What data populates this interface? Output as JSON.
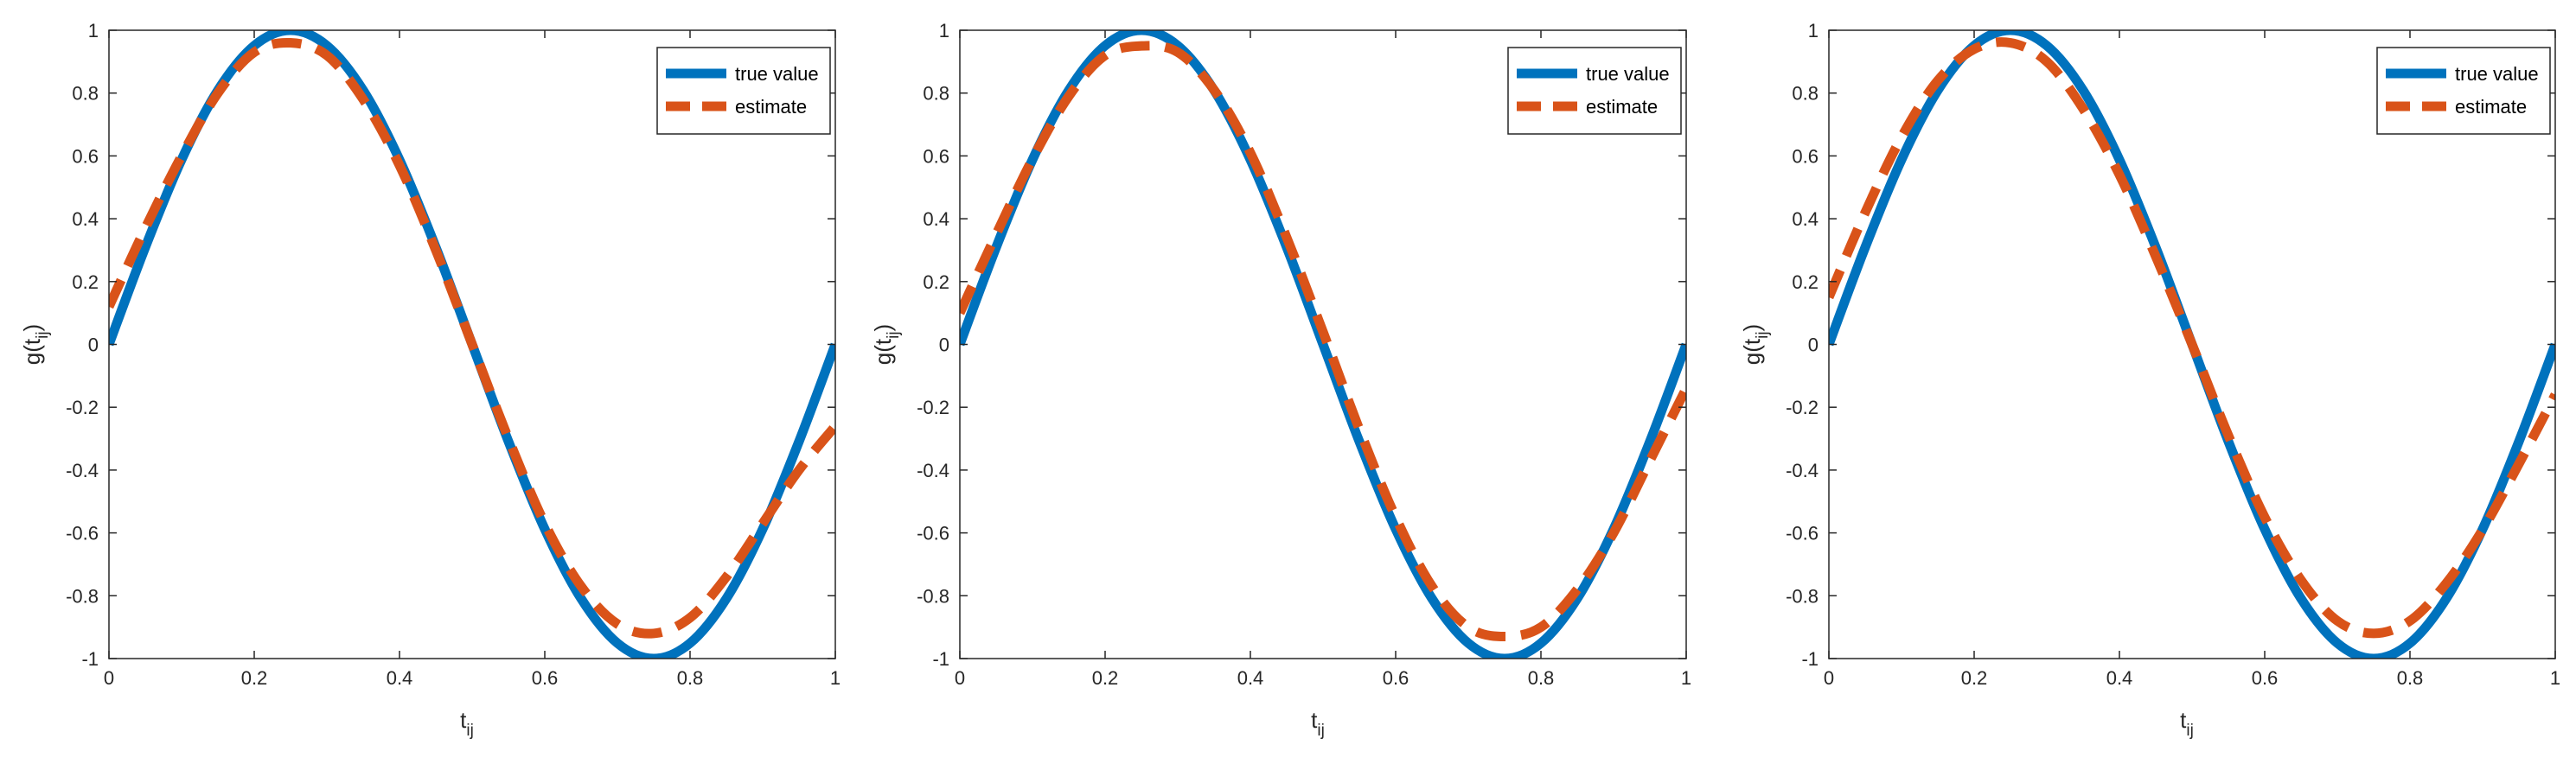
{
  "colors": {
    "true_value": "#0072BD",
    "estimate": "#D95319",
    "axis": "#262626"
  },
  "chart_data": [
    {
      "type": "line",
      "xlabel": {
        "main": "t",
        "sub": "ij"
      },
      "ylabel": {
        "main": "g(t",
        "sub": "ij",
        "close": ")"
      },
      "xlim": [
        0,
        1
      ],
      "ylim": [
        -1,
        1
      ],
      "xticks": [
        "0",
        "0.2",
        "0.4",
        "0.6",
        "0.8",
        "1"
      ],
      "yticks": [
        "-1",
        "-0.8",
        "-0.6",
        "-0.4",
        "-0.2",
        "0",
        "0.2",
        "0.4",
        "0.6",
        "0.8",
        "1"
      ],
      "grid": false,
      "legend_position": "top-right",
      "series": [
        {
          "name": "true value",
          "style": "solid",
          "x": [
            0,
            0.05,
            0.1,
            0.15,
            0.2,
            0.25,
            0.3,
            0.35,
            0.4,
            0.45,
            0.5,
            0.55,
            0.6,
            0.65,
            0.7,
            0.75,
            0.8,
            0.85,
            0.9,
            0.95,
            1
          ],
          "y": [
            0,
            0.309,
            0.588,
            0.809,
            0.951,
            1,
            0.951,
            0.809,
            0.588,
            0.309,
            0,
            -0.309,
            -0.588,
            -0.809,
            -0.951,
            -1,
            -0.951,
            -0.809,
            -0.588,
            -0.309,
            0
          ]
        },
        {
          "name": "estimate",
          "style": "dashed",
          "x": [
            0,
            0.05,
            0.1,
            0.15,
            0.2,
            0.25,
            0.3,
            0.35,
            0.4,
            0.45,
            0.5,
            0.55,
            0.6,
            0.65,
            0.7,
            0.75,
            0.8,
            0.85,
            0.9,
            0.95,
            1
          ],
          "y": [
            0.12,
            0.37,
            0.6,
            0.8,
            0.93,
            0.96,
            0.92,
            0.78,
            0.57,
            0.3,
            0,
            -0.3,
            -0.57,
            -0.77,
            -0.89,
            -0.92,
            -0.87,
            -0.74,
            -0.57,
            -0.4,
            -0.26
          ]
        }
      ]
    },
    {
      "type": "line",
      "xlabel": {
        "main": "t",
        "sub": "ij"
      },
      "ylabel": {
        "main": "g(t",
        "sub": "ij",
        "close": ")"
      },
      "xlim": [
        0,
        1
      ],
      "ylim": [
        -1,
        1
      ],
      "xticks": [
        "0",
        "0.2",
        "0.4",
        "0.6",
        "0.8",
        "1"
      ],
      "yticks": [
        "-1",
        "-0.8",
        "-0.6",
        "-0.4",
        "-0.2",
        "0",
        "0.2",
        "0.4",
        "0.6",
        "0.8",
        "1"
      ],
      "grid": false,
      "legend_position": "top-right",
      "series": [
        {
          "name": "true value",
          "style": "solid",
          "x": [
            0,
            0.05,
            0.1,
            0.15,
            0.2,
            0.25,
            0.3,
            0.35,
            0.4,
            0.45,
            0.5,
            0.55,
            0.6,
            0.65,
            0.7,
            0.75,
            0.8,
            0.85,
            0.9,
            0.95,
            1
          ],
          "y": [
            0,
            0.309,
            0.588,
            0.809,
            0.951,
            1,
            0.951,
            0.809,
            0.588,
            0.309,
            0,
            -0.309,
            -0.588,
            -0.809,
            -0.951,
            -1,
            -0.951,
            -0.809,
            -0.588,
            -0.309,
            0
          ]
        },
        {
          "name": "estimate",
          "style": "dashed",
          "x": [
            0,
            0.05,
            0.1,
            0.15,
            0.2,
            0.25,
            0.3,
            0.35,
            0.4,
            0.45,
            0.5,
            0.55,
            0.6,
            0.65,
            0.7,
            0.75,
            0.8,
            0.85,
            0.9,
            0.95,
            1
          ],
          "y": [
            0.1,
            0.35,
            0.59,
            0.79,
            0.92,
            0.95,
            0.93,
            0.81,
            0.61,
            0.34,
            0.04,
            -0.27,
            -0.55,
            -0.77,
            -0.9,
            -0.93,
            -0.9,
            -0.78,
            -0.6,
            -0.37,
            -0.14
          ]
        }
      ]
    },
    {
      "type": "line",
      "xlabel": {
        "main": "t",
        "sub": "ij"
      },
      "ylabel": {
        "main": "g(t",
        "sub": "ij",
        "close": ")"
      },
      "xlim": [
        0,
        1
      ],
      "ylim": [
        -1,
        1
      ],
      "xticks": [
        "0",
        "0.2",
        "0.4",
        "0.6",
        "0.8",
        "1"
      ],
      "yticks": [
        "-1",
        "-0.8",
        "-0.6",
        "-0.4",
        "-0.2",
        "0",
        "0.2",
        "0.4",
        "0.6",
        "0.8",
        "1"
      ],
      "grid": false,
      "legend_position": "top-right",
      "series": [
        {
          "name": "true value",
          "style": "solid",
          "x": [
            0,
            0.05,
            0.1,
            0.15,
            0.2,
            0.25,
            0.3,
            0.35,
            0.4,
            0.45,
            0.5,
            0.55,
            0.6,
            0.65,
            0.7,
            0.75,
            0.8,
            0.85,
            0.9,
            0.95,
            1
          ],
          "y": [
            0,
            0.309,
            0.588,
            0.809,
            0.951,
            1,
            0.951,
            0.809,
            0.588,
            0.309,
            0,
            -0.309,
            -0.588,
            -0.809,
            -0.951,
            -1,
            -0.951,
            -0.809,
            -0.588,
            -0.309,
            0
          ]
        },
        {
          "name": "estimate",
          "style": "dashed",
          "x": [
            0,
            0.05,
            0.1,
            0.15,
            0.2,
            0.25,
            0.3,
            0.35,
            0.4,
            0.45,
            0.5,
            0.55,
            0.6,
            0.65,
            0.7,
            0.75,
            0.8,
            0.85,
            0.9,
            0.95,
            1
          ],
          "y": [
            0.15,
            0.42,
            0.66,
            0.84,
            0.94,
            0.96,
            0.9,
            0.75,
            0.54,
            0.28,
            0,
            -0.29,
            -0.55,
            -0.75,
            -0.88,
            -0.92,
            -0.88,
            -0.76,
            -0.59,
            -0.38,
            -0.16
          ]
        }
      ]
    }
  ]
}
